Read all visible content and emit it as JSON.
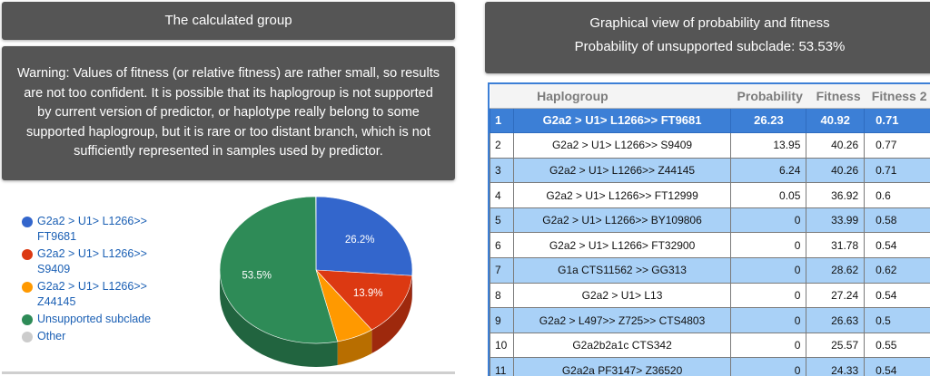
{
  "left_title": "The calculated group",
  "warning_text": "Warning: Values of fitness (or relative fitness) are rather small, so results are not too confident. It is possible that its haplogroup is not supported by current version of predictor, or haplotype really belong to some supported haplogroup, but it is rare or too distant branch, which is not sufficiently represented in samples used by predictor.",
  "right_title": {
    "line1": "Graphical view of probability and fitness",
    "line2": "Probability of unsupported subclade: 53.53%"
  },
  "legend": [
    {
      "label": "G2a2 > U1> L1266>> FT9681",
      "color": "#3366cc"
    },
    {
      "label": "G2a2 > U1> L1266>> S9409",
      "color": "#dc3912"
    },
    {
      "label": "G2a2 > U1> L1266>> Z44145",
      "color": "#ff9900"
    },
    {
      "label": "Unsupported subclade",
      "color": "#2e8b57"
    },
    {
      "label": "Other",
      "color": "#cccccc"
    }
  ],
  "chart_data": {
    "type": "pie",
    "slices": [
      {
        "name": "G2a2 > U1> L1266>> FT9681",
        "value": 26.23,
        "label": "26.2%",
        "color": "#3366cc"
      },
      {
        "name": "G2a2 > U1> L1266>> S9409",
        "value": 13.95,
        "label": "13.9%",
        "color": "#dc3912"
      },
      {
        "name": "G2a2 > U1> L1266>> Z44145",
        "value": 6.24,
        "label": "",
        "color": "#ff9900"
      },
      {
        "name": "Unsupported subclade",
        "value": 53.53,
        "label": "53.5%",
        "color": "#2e8b57"
      },
      {
        "name": "Other",
        "value": 0.05,
        "label": "",
        "color": "#cccccc"
      }
    ],
    "legend_position": "left",
    "style": "3d"
  },
  "table": {
    "headers": {
      "num": "",
      "haplogroup": "Haplogroup",
      "probability": "Probability",
      "fitness": "Fitness",
      "fitness2": "Fitness 2"
    },
    "rows": [
      {
        "n": "1",
        "hg": "G2a2 > U1> L1266>> FT9681",
        "p": "26.23",
        "f": "40.92",
        "f2": "0.71"
      },
      {
        "n": "2",
        "hg": "G2a2 > U1> L1266>> S9409",
        "p": "13.95",
        "f": "40.26",
        "f2": "0.77"
      },
      {
        "n": "3",
        "hg": "G2a2 > U1> L1266>> Z44145",
        "p": "6.24",
        "f": "40.26",
        "f2": "0.71"
      },
      {
        "n": "4",
        "hg": "G2a2 > U1> L1266>> FT12999",
        "p": "0.05",
        "f": "36.92",
        "f2": "0.6"
      },
      {
        "n": "5",
        "hg": "G2a2 > U1> L1266>> BY109806",
        "p": "0",
        "f": "33.99",
        "f2": "0.58"
      },
      {
        "n": "6",
        "hg": "G2a2 > U1> L1266> FT32900",
        "p": "0",
        "f": "31.78",
        "f2": "0.54"
      },
      {
        "n": "7",
        "hg": "G1a CTS11562 >> GG313",
        "p": "0",
        "f": "28.62",
        "f2": "0.62"
      },
      {
        "n": "8",
        "hg": "G2a2 > U1> L13",
        "p": "0",
        "f": "27.24",
        "f2": "0.54"
      },
      {
        "n": "9",
        "hg": "G2a2 > L497>> Z725>> CTS4803",
        "p": "0",
        "f": "26.63",
        "f2": "0.5"
      },
      {
        "n": "10",
        "hg": "G2a2b2a1c CTS342",
        "p": "0",
        "f": "25.57",
        "f2": "0.55"
      },
      {
        "n": "11",
        "hg": "G2a2a PF3147> Z36520",
        "p": "0",
        "f": "24.33",
        "f2": "0.54"
      }
    ]
  }
}
